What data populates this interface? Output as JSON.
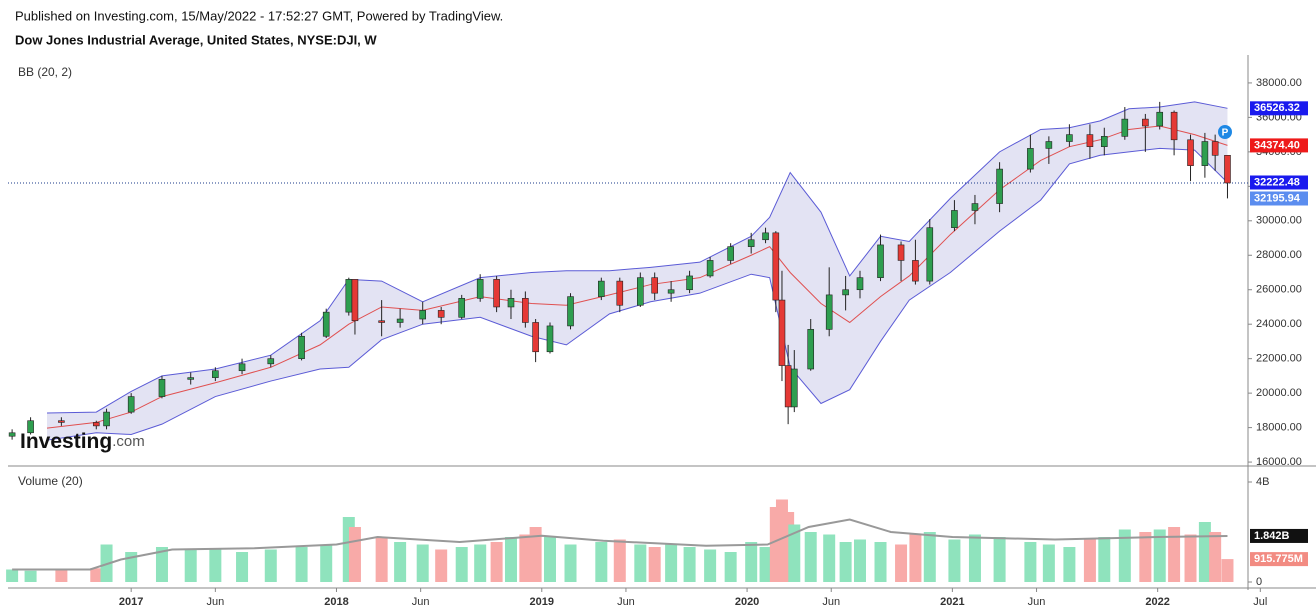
{
  "header": {
    "published": "Published on Investing.com, 15/May/2022 - 17:52:27 GMT, Powered by TradingView.",
    "title": "Dow Jones Industrial Average, United States, NYSE:DJI, W"
  },
  "logo": {
    "main": "Investing",
    "suffix": ".com"
  },
  "badge": "P",
  "chart_data": {
    "type": "candlestick",
    "indicator": "BB (20, 2)",
    "x": [
      2016.42,
      2016.51,
      2016.66,
      2016.83,
      2016.88,
      2017.0,
      2017.15,
      2017.29,
      2017.41,
      2017.54,
      2017.68,
      2017.83,
      2017.95,
      2018.06,
      2018.09,
      2018.22,
      2018.31,
      2018.42,
      2018.51,
      2018.61,
      2018.7,
      2018.78,
      2018.85,
      2018.92,
      2018.97,
      2019.04,
      2019.14,
      2019.29,
      2019.38,
      2019.48,
      2019.55,
      2019.63,
      2019.72,
      2019.82,
      2019.92,
      2020.02,
      2020.09,
      2020.14,
      2020.17,
      2020.2,
      2020.23,
      2020.31,
      2020.4,
      2020.48,
      2020.55,
      2020.65,
      2020.75,
      2020.82,
      2020.89,
      2021.01,
      2021.11,
      2021.23,
      2021.38,
      2021.47,
      2021.57,
      2021.67,
      2021.74,
      2021.84,
      2021.94,
      2022.01,
      2022.08,
      2022.16,
      2022.23,
      2022.28,
      2022.34
    ],
    "open": [
      17500,
      17700,
      18400,
      18300,
      18100,
      18900,
      19800,
      20800,
      20900,
      21300,
      21700,
      22000,
      23300,
      24700,
      26600,
      24200,
      24100,
      24300,
      24800,
      24400,
      25500,
      26600,
      25000,
      25500,
      24100,
      22400,
      23900,
      25600,
      26500,
      25100,
      26700,
      25800,
      26000,
      26800,
      27700,
      28500,
      28900,
      29300,
      25400,
      21600,
      19200,
      21400,
      23700,
      25700,
      26000,
      26700,
      28600,
      27700,
      26500,
      29600,
      30600,
      31000,
      33000,
      34200,
      34600,
      35000,
      34300,
      34900,
      35900,
      35500,
      36300,
      34700,
      33200,
      34600,
      33800
    ],
    "high": [
      17900,
      18600,
      18600,
      18400,
      19100,
      20000,
      21000,
      21200,
      21500,
      22000,
      22200,
      23500,
      24900,
      26700,
      26500,
      25400,
      24900,
      25300,
      25000,
      25700,
      26900,
      26800,
      26000,
      25900,
      24300,
      24100,
      25800,
      26700,
      26700,
      27000,
      27000,
      26500,
      27100,
      27900,
      28700,
      29300,
      29600,
      29400,
      27100,
      22800,
      22500,
      24300,
      27300,
      26800,
      27100,
      29200,
      28800,
      28900,
      30100,
      31200,
      31500,
      33400,
      35000,
      34900,
      35600,
      35600,
      35400,
      36600,
      36200,
      36900,
      36400,
      35000,
      35100,
      35000,
      33800
    ],
    "low": [
      17300,
      17600,
      18100,
      17900,
      17900,
      18800,
      19700,
      20500,
      20700,
      21100,
      21500,
      21900,
      23200,
      24500,
      23400,
      23300,
      23800,
      24000,
      24000,
      24300,
      25300,
      24700,
      24300,
      23800,
      21800,
      22300,
      23700,
      25400,
      24700,
      25000,
      25400,
      25300,
      25800,
      26700,
      27500,
      28100,
      28700,
      24700,
      20700,
      18200,
      18900,
      21300,
      23300,
      24800,
      25500,
      26500,
      26500,
      26300,
      26300,
      29400,
      29800,
      30500,
      32800,
      33300,
      34300,
      33600,
      33800,
      34700,
      34000,
      35300,
      33800,
      32300,
      32500,
      32900,
      31300
    ],
    "close": [
      17700,
      18400,
      18300,
      18100,
      18900,
      19800,
      20800,
      20900,
      21300,
      21700,
      22000,
      23300,
      24700,
      26600,
      24200,
      24100,
      24300,
      24800,
      24400,
      25500,
      26600,
      25000,
      25500,
      24100,
      22400,
      23900,
      25600,
      26500,
      25100,
      26700,
      25800,
      26000,
      26800,
      27700,
      28500,
      28900,
      29300,
      25400,
      21600,
      19200,
      21400,
      23700,
      25700,
      26000,
      26700,
      28600,
      27700,
      26500,
      29600,
      30600,
      31000,
      33000,
      34200,
      34600,
      35000,
      34300,
      34900,
      35900,
      35500,
      36300,
      34700,
      33200,
      34600,
      33800,
      32195.94
    ],
    "up_color": "#2e9e4f",
    "down_color": "#e53935",
    "bands": {
      "x": [
        2016.59,
        2016.83,
        2017.0,
        2017.15,
        2017.41,
        2017.68,
        2017.92,
        2018.06,
        2018.22,
        2018.42,
        2018.7,
        2018.95,
        2019.12,
        2019.33,
        2019.53,
        2019.77,
        2020.02,
        2020.11,
        2020.21,
        2020.36,
        2020.5,
        2020.65,
        2020.79,
        2020.99,
        2021.23,
        2021.43,
        2021.57,
        2021.72,
        2021.86,
        2022.01,
        2022.18,
        2022.34
      ],
      "upper": [
        18850,
        18900,
        20100,
        21000,
        21400,
        22200,
        24200,
        26600,
        26500,
        25300,
        26700,
        27000,
        27100,
        27100,
        27300,
        27600,
        29100,
        30200,
        32800,
        30500,
        26800,
        29100,
        28800,
        31300,
        34000,
        35300,
        35400,
        35800,
        36500,
        36600,
        36900,
        36526.32
      ],
      "middle": [
        17970,
        18300,
        18900,
        19800,
        20600,
        21500,
        22800,
        24000,
        25000,
        24800,
        25600,
        25200,
        25100,
        25700,
        26300,
        26700,
        28000,
        28500,
        27000,
        25200,
        24100,
        25600,
        26800,
        29200,
        31800,
        33500,
        34300,
        34700,
        35300,
        35500,
        35000,
        34374.4
      ],
      "lower": [
        17270,
        17700,
        17600,
        18200,
        19800,
        20700,
        21400,
        21500,
        23100,
        24000,
        24400,
        23300,
        22800,
        24600,
        25300,
        25800,
        26900,
        26700,
        21500,
        19400,
        20200,
        23000,
        25400,
        27000,
        29400,
        31200,
        33300,
        33800,
        34000,
        34200,
        34100,
        32222.48
      ],
      "band_color": "#5b5bd6",
      "fill_color": "#e3e3f3",
      "middle_color": "#e05050"
    },
    "price_labels": [
      {
        "value": 36526.32,
        "label": "36526.32",
        "color": "#1a1aee"
      },
      {
        "value": 34374.4,
        "label": "34374.40",
        "color": "#ee1a1a"
      },
      {
        "value": 32222.48,
        "label": "32222.48",
        "color": "#1a1aee"
      },
      {
        "value": 32195.94,
        "label": "32195.94",
        "color": "#5b8def"
      }
    ],
    "xlim": [
      2016.4,
      2022.44
    ],
    "xticks": [
      {
        "value": 2017,
        "label": "2017"
      },
      {
        "value": 2017.41,
        "label": "Jun"
      },
      {
        "value": 2018,
        "label": "2018"
      },
      {
        "value": 2018.41,
        "label": "Jun"
      },
      {
        "value": 2019,
        "label": "2019"
      },
      {
        "value": 2019.41,
        "label": "Jun"
      },
      {
        "value": 2020,
        "label": "2020"
      },
      {
        "value": 2020.41,
        "label": "Jun"
      },
      {
        "value": 2021,
        "label": "2021"
      },
      {
        "value": 2021.41,
        "label": "Jun"
      },
      {
        "value": 2022,
        "label": "2022"
      },
      {
        "value": 2022.5,
        "label": "Jul"
      }
    ],
    "ylim": [
      15830,
      39620
    ],
    "yticks": [
      {
        "value": 16000,
        "label": "16000.00"
      },
      {
        "value": 18000,
        "label": "18000.00"
      },
      {
        "value": 20000,
        "label": "20000.00"
      },
      {
        "value": 22000,
        "label": "22000.00"
      },
      {
        "value": 24000,
        "label": "24000.00"
      },
      {
        "value": 26000,
        "label": "26000.00"
      },
      {
        "value": 28000,
        "label": "28000.00"
      },
      {
        "value": 30000,
        "label": "30000.00"
      },
      {
        "value": 32000,
        "label": "32000.00"
      },
      {
        "value": 34000,
        "label": "34000.00"
      },
      {
        "value": 36000,
        "label": "36000.00"
      },
      {
        "value": 38000,
        "label": "38000.00"
      }
    ],
    "volume": {
      "label": "Volume (20)",
      "values": [
        0.5,
        0.45,
        0.5,
        0.55,
        1.5,
        1.2,
        1.4,
        1.3,
        1.3,
        1.2,
        1.3,
        1.4,
        1.5,
        2.6,
        2.2,
        1.8,
        1.6,
        1.5,
        1.3,
        1.4,
        1.5,
        1.6,
        1.8,
        1.9,
        2.2,
        1.8,
        1.5,
        1.6,
        1.7,
        1.5,
        1.4,
        1.5,
        1.4,
        1.3,
        1.2,
        1.6,
        1.4,
        3.0,
        3.3,
        2.8,
        2.3,
        2.0,
        1.9,
        1.6,
        1.7,
        1.6,
        1.5,
        1.9,
        2.0,
        1.7,
        1.9,
        1.8,
        1.6,
        1.5,
        1.4,
        1.7,
        1.8,
        2.1,
        2.0,
        2.1,
        2.2,
        1.9,
        2.4,
        2.0,
        0.915775
      ],
      "up_color": "#8fe3bd",
      "down_color": "#f8aaa8",
      "ma": {
        "x": [
          2016.42,
          2016.8,
          2016.95,
          2017.2,
          2017.6,
          2018.0,
          2018.2,
          2018.6,
          2019.0,
          2019.3,
          2019.8,
          2020.1,
          2020.3,
          2020.5,
          2020.7,
          2021.0,
          2021.5,
          2022.0,
          2022.34
        ],
        "values": [
          0.5,
          0.5,
          0.9,
          1.3,
          1.35,
          1.5,
          1.8,
          1.6,
          1.85,
          1.65,
          1.45,
          1.5,
          2.2,
          2.5,
          2.0,
          1.8,
          1.7,
          1.8,
          1.842
        ],
        "color": "#999999"
      },
      "markers": [
        {
          "value": 1.842,
          "label": "1.842B",
          "color": "#111111"
        },
        {
          "value": 0.915775,
          "label": "915.775M",
          "color": "#f28b82"
        }
      ],
      "ylim": [
        -0.16,
        4.56
      ],
      "yticks": [
        0,
        {
          "value": 4,
          "label": "4B"
        }
      ]
    }
  }
}
